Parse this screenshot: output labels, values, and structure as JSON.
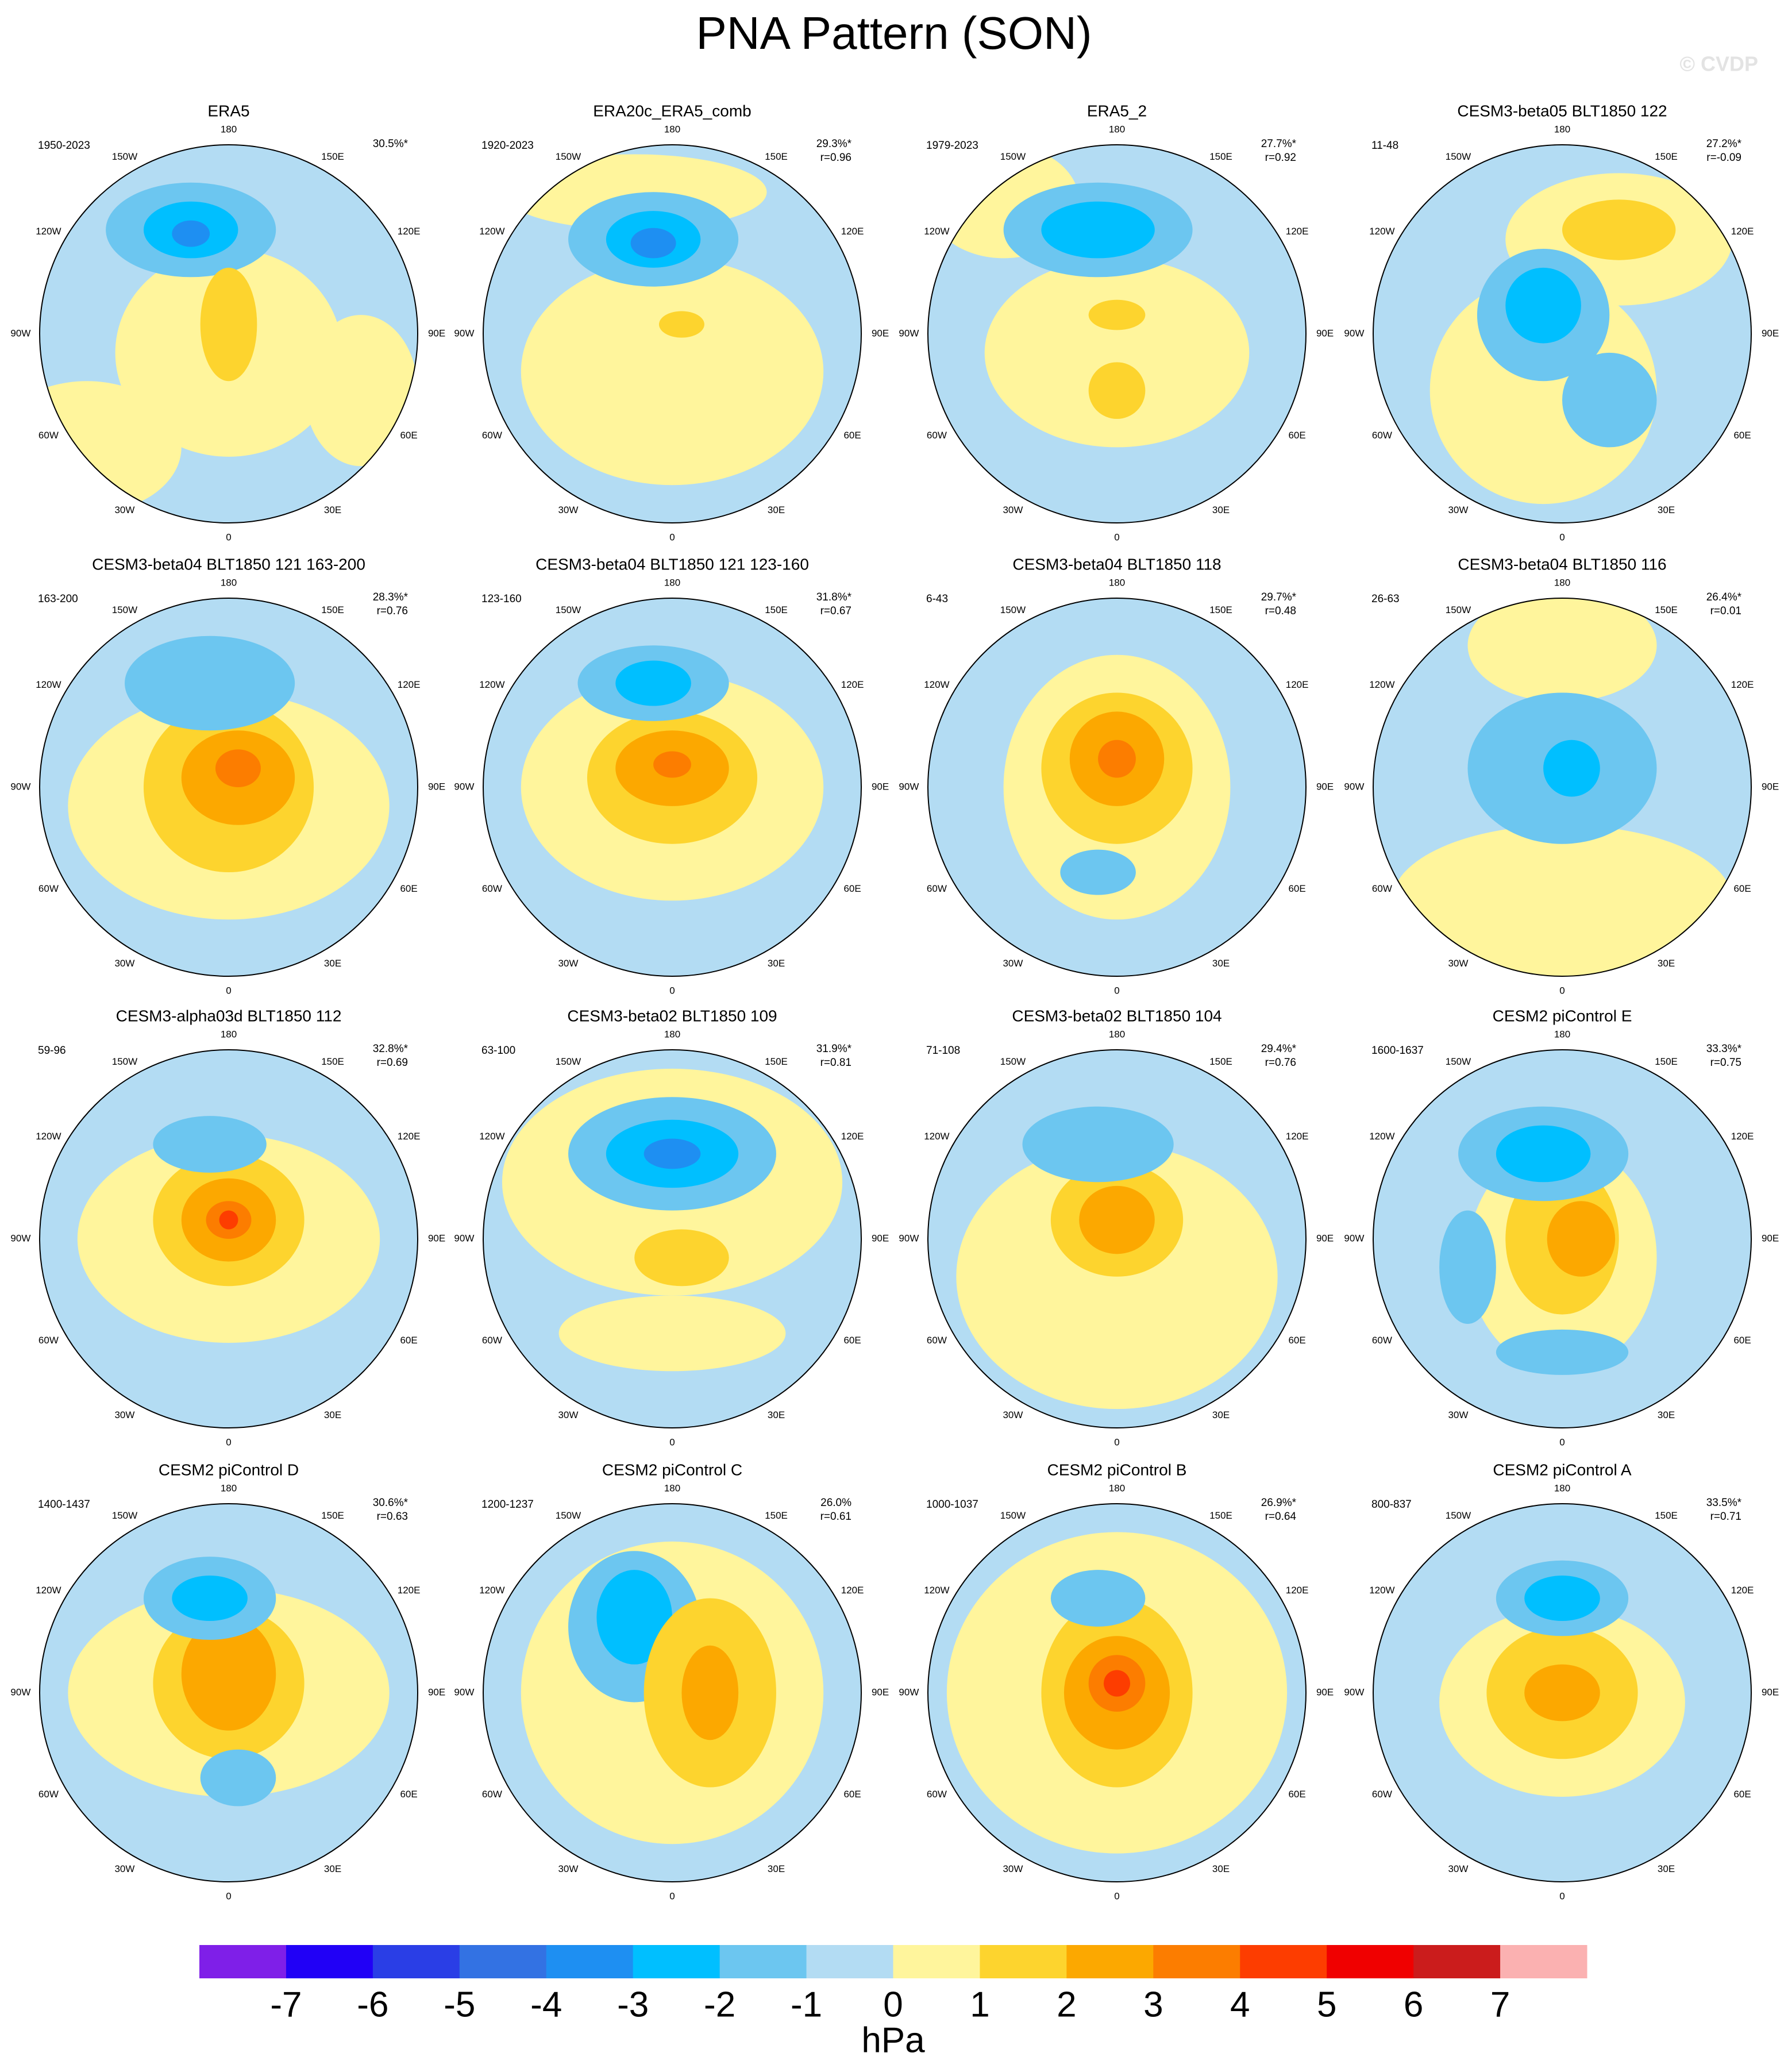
{
  "title": "PNA Pattern (SON)",
  "watermark": "© CVDP",
  "lon_labels": [
    "180",
    "150E",
    "120E",
    "90E",
    "60E",
    "30E",
    "0",
    "30W",
    "60W",
    "90W",
    "120W",
    "150W"
  ],
  "panels": [
    {
      "title": "ERA5",
      "years": "1950-2023",
      "pct": "30.5%*"
    },
    {
      "title": "ERA20c_ERA5_comb",
      "years": "1920-2023",
      "pct": "29.3%*",
      "r": "r=0.96"
    },
    {
      "title": "ERA5_2",
      "years": "1979-2023",
      "pct": "27.7%*",
      "r": "r=0.92"
    },
    {
      "title": "CESM3-beta05 BLT1850 122",
      "years": "11-48",
      "pct": "27.2%*",
      "r": "r=-0.09"
    },
    {
      "title": "CESM3-beta04 BLT1850 121 163-200",
      "years": "163-200",
      "pct": "28.3%*",
      "r": "r=0.76"
    },
    {
      "title": "CESM3-beta04 BLT1850 121 123-160",
      "years": "123-160",
      "pct": "31.8%*",
      "r": "r=0.67"
    },
    {
      "title": "CESM3-beta04 BLT1850 118",
      "years": "6-43",
      "pct": "29.7%*",
      "r": "r=0.48"
    },
    {
      "title": "CESM3-beta04 BLT1850 116",
      "years": "26-63",
      "pct": "26.4%*",
      "r": "r=0.01"
    },
    {
      "title": "CESM3-alpha03d BLT1850 112",
      "years": "59-96",
      "pct": "32.8%*",
      "r": "r=0.69"
    },
    {
      "title": "CESM3-beta02 BLT1850 109",
      "years": "63-100",
      "pct": "31.9%*",
      "r": "r=0.81"
    },
    {
      "title": "CESM3-beta02 BLT1850 104",
      "years": "71-108",
      "pct": "29.4%*",
      "r": "r=0.76"
    },
    {
      "title": "CESM2 piControl E",
      "years": "1600-1637",
      "pct": "33.3%*",
      "r": "r=0.75"
    },
    {
      "title": "CESM2 piControl D",
      "years": "1400-1437",
      "pct": "30.6%*",
      "r": "r=0.63"
    },
    {
      "title": "CESM2 piControl C",
      "years": "1200-1237",
      "pct": "26.0%",
      "r": "r=0.61"
    },
    {
      "title": "CESM2 piControl B",
      "years": "1000-1037",
      "pct": "26.9%*",
      "r": "r=0.64"
    },
    {
      "title": "CESM2 piControl A",
      "years": "800-837",
      "pct": "33.5%*",
      "r": "r=0.71"
    }
  ],
  "colorbar": {
    "colors": [
      "#7f1fe8",
      "#2100f6",
      "#2a3ee6",
      "#3372e3",
      "#1e8ff2",
      "#00bfff",
      "#6cc6f0",
      "#b3dcf3",
      "#fff59c",
      "#fdd42e",
      "#fca800",
      "#fc7d00",
      "#fd3d00",
      "#f00000",
      "#cb1c1c",
      "#fbb1b1"
    ],
    "ticks": [
      -7,
      -6,
      -5,
      -4,
      -3,
      -2,
      -1,
      0,
      1,
      2,
      3,
      4,
      5,
      6,
      7
    ],
    "label": "hPa"
  }
}
